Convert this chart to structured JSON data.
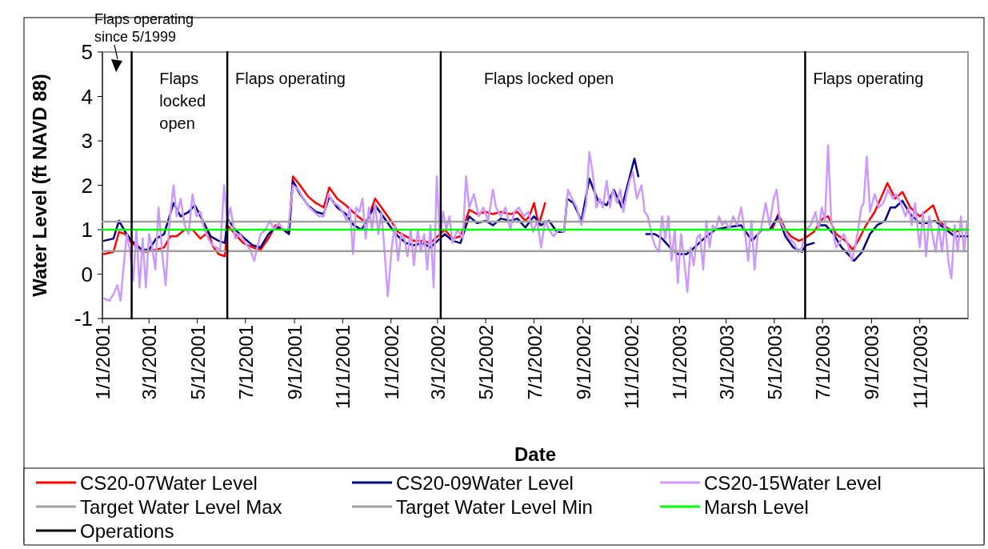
{
  "chart_data": {
    "type": "line",
    "xlabel": "Date",
    "ylabel": "Water Level (ft NAVD 88)",
    "xlim": [
      "2001-01-01",
      "2004-01-01"
    ],
    "ylim": [
      -1,
      5
    ],
    "yticks": [
      -1,
      0,
      1,
      2,
      3,
      4,
      5
    ],
    "xticks": [
      {
        "value": "2001-01-01",
        "label": "1/1/2001"
      },
      {
        "value": "2001-03-01",
        "label": "3/1/2001"
      },
      {
        "value": "2001-05-01",
        "label": "5/1/2001"
      },
      {
        "value": "2001-07-01",
        "label": "7/1/2001"
      },
      {
        "value": "2001-09-01",
        "label": "9/1/2001"
      },
      {
        "value": "2001-11-01",
        "label": "11/1/2001"
      },
      {
        "value": "2002-01-01",
        "label": "1/1/2002"
      },
      {
        "value": "2002-03-01",
        "label": "3/1/2002"
      },
      {
        "value": "2002-05-01",
        "label": "5/1/2002"
      },
      {
        "value": "2002-07-01",
        "label": "7/1/2002"
      },
      {
        "value": "2002-09-01",
        "label": "9/1/2002"
      },
      {
        "value": "2002-11-01",
        "label": "11/1/2002"
      },
      {
        "value": "2003-01-01",
        "label": "1/1/2003"
      },
      {
        "value": "2003-03-01",
        "label": "3/1/2003"
      },
      {
        "value": "2003-05-01",
        "label": "5/1/2003"
      },
      {
        "value": "2003-07-01",
        "label": "7/1/2003"
      },
      {
        "value": "2003-09-01",
        "label": "9/1/2003"
      },
      {
        "value": "2003-11-01",
        "label": "11/1/2003"
      }
    ],
    "legend": "bottom",
    "annotations": [
      "Flaps operating since 5/1999",
      "Flaps locked open",
      "Flaps operating",
      "Flaps locked open",
      "Flaps operating"
    ],
    "series": [
      {
        "name": "CS20-07Water Level",
        "color": "#ff0000",
        "x": [
          "2001-01-03",
          "2001-01-15",
          "2001-01-22",
          "2001-01-30",
          "2001-02-07",
          "2001-02-15",
          "2001-02-25",
          "2001-03-10",
          "2001-03-20",
          "2001-03-28",
          "2001-04-05",
          "2001-04-15",
          "2001-04-25",
          "2001-05-05",
          "2001-05-15",
          "2001-05-20",
          "2001-05-28",
          "2001-06-05",
          "2001-06-08",
          "2001-06-18",
          "2001-06-28",
          "2001-07-10",
          "2001-07-20",
          "2001-07-30",
          "2001-08-08",
          "2001-08-18",
          "2001-08-25",
          "2001-08-30",
          "2001-09-08",
          "2001-09-18",
          "2001-09-28",
          "2001-10-08",
          "2001-10-15",
          "2001-10-25",
          "2001-11-05",
          "2001-11-20",
          "2001-12-01",
          "2001-12-12",
          "2001-12-22",
          "2002-01-01",
          "2002-01-10",
          "2002-01-20",
          "2002-01-30",
          "2002-02-10",
          "2002-02-20",
          "2002-03-01",
          "2002-03-10",
          "2002-03-20",
          "2002-03-30",
          "2002-04-10",
          "2002-04-20",
          "2002-05-01",
          "2002-05-10",
          "2002-05-20",
          "2002-06-01",
          "2002-06-10",
          "2002-06-20",
          "2002-06-25",
          "2002-07-01",
          "2002-07-07",
          "2002-07-15",
          "2002-12-01",
          "2003-04-28",
          "2003-05-06",
          "2003-05-15",
          "2003-05-22",
          "2003-06-01",
          "2003-06-08",
          "2003-06-20",
          "2003-07-01",
          "2003-07-08",
          "2003-07-18",
          "2003-07-30",
          "2003-08-08",
          "2003-08-15",
          "2003-08-25",
          "2003-09-05",
          "2003-09-15",
          "2003-09-21",
          "2003-10-01",
          "2003-10-10",
          "2003-10-20",
          "2003-11-01",
          "2003-11-18",
          "2003-11-25",
          "2003-12-05",
          "2003-12-15",
          "2003-12-25",
          "2003-12-31"
        ],
        "values": [
          0.45,
          0.5,
          0.95,
          0.9,
          0.7,
          0.6,
          0.5,
          0.55,
          0.6,
          0.85,
          0.85,
          1.0,
          1.0,
          0.8,
          0.95,
          0.65,
          0.45,
          0.4,
          1.1,
          0.9,
          0.7,
          0.6,
          0.55,
          0.8,
          1.1,
          1.0,
          0.95,
          2.2,
          2.0,
          1.75,
          1.6,
          1.5,
          1.95,
          1.7,
          1.55,
          1.3,
          1.15,
          1.7,
          1.45,
          1.2,
          0.95,
          0.85,
          0.75,
          0.75,
          0.7,
          0.85,
          1.0,
          0.8,
          0.85,
          1.45,
          1.35,
          1.4,
          1.35,
          1.4,
          1.35,
          1.4,
          1.2,
          1.3,
          1.6,
          1.1,
          1.6,
          null,
          1.0,
          1.35,
          1.0,
          0.85,
          0.75,
          0.8,
          0.95,
          1.25,
          1.3,
          0.9,
          0.75,
          0.55,
          0.75,
          1.1,
          1.4,
          1.8,
          2.05,
          1.7,
          1.85,
          1.5,
          1.3,
          1.55,
          1.2,
          1.05,
          0.95,
          1.0,
          1.0
        ]
      },
      {
        "name": "CS20-09Water Level",
        "color": "#000080",
        "x": [
          "2001-01-03",
          "2001-01-15",
          "2001-01-22",
          "2001-01-30",
          "2001-02-07",
          "2001-02-20",
          "2001-03-01",
          "2001-03-10",
          "2001-03-20",
          "2001-04-01",
          "2001-04-10",
          "2001-04-20",
          "2001-04-28",
          "2001-05-08",
          "2001-05-18",
          "2001-05-28",
          "2001-06-05",
          "2001-06-08",
          "2001-06-18",
          "2001-06-30",
          "2001-07-10",
          "2001-07-20",
          "2001-07-30",
          "2001-08-08",
          "2001-08-18",
          "2001-08-25",
          "2001-08-30",
          "2001-09-08",
          "2001-09-18",
          "2001-09-28",
          "2001-10-08",
          "2001-10-15",
          "2001-10-25",
          "2001-11-05",
          "2001-11-15",
          "2001-11-25",
          "2001-12-12",
          "2001-12-22",
          "2002-01-01",
          "2002-01-10",
          "2002-01-20",
          "2002-01-30",
          "2002-02-10",
          "2002-02-20",
          "2002-03-01",
          "2002-03-10",
          "2002-03-20",
          "2002-03-30",
          "2002-04-10",
          "2002-04-20",
          "2002-05-01",
          "2002-05-10",
          "2002-05-20",
          "2002-06-01",
          "2002-06-10",
          "2002-06-20",
          "2002-07-01",
          "2002-07-10",
          "2002-07-20",
          "2002-07-30",
          "2002-08-08",
          "2002-08-12",
          "2002-08-20",
          "2002-08-30",
          "2002-09-09",
          "2002-09-20",
          "2002-10-01",
          "2002-10-10",
          "2002-10-20",
          "2002-10-28",
          "2002-11-05",
          "2002-11-10",
          "2002-11-15",
          "2002-11-20",
          "2002-12-01",
          "2002-12-10",
          "2002-12-20",
          "2002-12-30",
          "2003-01-10",
          "2003-01-20",
          "2003-02-01",
          "2003-02-15",
          "2003-03-01",
          "2003-03-20",
          "2003-04-03",
          "2003-04-15",
          "2003-04-25",
          "2003-05-06",
          "2003-05-15",
          "2003-05-25",
          "2003-06-05",
          "2003-06-10",
          "2003-06-20",
          "2003-06-22",
          "2003-06-25",
          "2003-07-05",
          "2003-07-15",
          "2003-07-25",
          "2003-08-05",
          "2003-08-10",
          "2003-08-20",
          "2003-08-30",
          "2003-09-08",
          "2003-09-18",
          "2003-09-25",
          "2003-10-01",
          "2003-10-10",
          "2003-10-20",
          "2003-11-01",
          "2003-11-10",
          "2003-11-20",
          "2003-12-01",
          "2003-12-15",
          "2003-12-31"
        ],
        "values": [
          0.75,
          0.8,
          1.2,
          0.95,
          0.75,
          0.55,
          0.55,
          0.8,
          0.9,
          1.6,
          1.3,
          1.4,
          1.55,
          1.2,
          0.85,
          0.75,
          0.7,
          1.25,
          1.0,
          0.8,
          0.65,
          0.6,
          0.9,
          1.05,
          1.0,
          0.9,
          2.1,
          1.8,
          1.55,
          1.4,
          1.35,
          1.75,
          1.5,
          1.35,
          1.1,
          1.0,
          1.55,
          1.3,
          1.05,
          0.85,
          0.7,
          0.65,
          0.7,
          0.6,
          0.75,
          0.9,
          0.75,
          0.7,
          1.3,
          1.15,
          1.2,
          1.1,
          1.25,
          1.2,
          1.25,
          1.05,
          1.3,
          1.1,
          1.2,
          0.95,
          0.95,
          1.7,
          1.6,
          1.2,
          2.15,
          1.65,
          1.55,
          1.9,
          1.5,
          2.05,
          2.6,
          2.2,
          null,
          0.9,
          0.9,
          0.8,
          0.6,
          0.45,
          0.45,
          0.6,
          0.8,
          1.0,
          1.05,
          1.1,
          0.75,
          1.0,
          1.0,
          1.3,
          0.85,
          0.6,
          0.5,
          0.65,
          0.7,
          null,
          1.1,
          1.1,
          0.9,
          0.6,
          0.4,
          0.3,
          0.5,
          0.9,
          1.1,
          1.2,
          1.5,
          1.5,
          1.65,
          1.35,
          1.15,
          1.15,
          1.2,
          1.05,
          0.85,
          0.85
        ]
      },
      {
        "name": "CS20-15Water Level",
        "color": "#cc99ff",
        "x": [
          "2001-01-03",
          "2001-01-10",
          "2001-01-15",
          "2001-01-20",
          "2001-01-24",
          "2001-01-28",
          "2001-02-01",
          "2001-02-05",
          "2001-02-09",
          "2001-02-13",
          "2001-02-17",
          "2001-02-21",
          "2001-02-25",
          "2001-03-01",
          "2001-03-05",
          "2001-03-09",
          "2001-03-13",
          "2001-03-18",
          "2001-03-22",
          "2001-03-27",
          "2001-04-01",
          "2001-04-05",
          "2001-04-10",
          "2001-04-15",
          "2001-04-20",
          "2001-04-25",
          "2001-04-30",
          "2001-05-05",
          "2001-05-10",
          "2001-05-15",
          "2001-05-20",
          "2001-05-25",
          "2001-05-30",
          "2001-06-04",
          "2001-06-08",
          "2001-06-12",
          "2001-06-18",
          "2001-06-24",
          "2001-07-01",
          "2001-07-07",
          "2001-07-12",
          "2001-07-20",
          "2001-07-26",
          "2001-08-01",
          "2001-08-06",
          "2001-08-12",
          "2001-08-18",
          "2001-08-24",
          "2001-08-30",
          "2001-09-06",
          "2001-09-12",
          "2001-09-20",
          "2001-09-26",
          "2001-10-02",
          "2001-10-08",
          "2001-10-14",
          "2001-10-20",
          "2001-10-26",
          "2001-11-01",
          "2001-11-06",
          "2001-11-10",
          "2001-11-14",
          "2001-11-18",
          "2001-11-22",
          "2001-11-26",
          "2001-11-30",
          "2001-12-04",
          "2001-12-08",
          "2001-12-12",
          "2001-12-16",
          "2001-12-20",
          "2001-12-24",
          "2001-12-28",
          "2002-01-02",
          "2002-01-06",
          "2002-01-10",
          "2002-01-14",
          "2002-01-18",
          "2002-01-22",
          "2002-01-26",
          "2002-01-30",
          "2002-02-04",
          "2002-02-08",
          "2002-02-12",
          "2002-02-16",
          "2002-02-20",
          "2002-02-24",
          "2002-02-28",
          "2002-03-04",
          "2002-03-08",
          "2002-03-12",
          "2002-03-16",
          "2002-03-20",
          "2002-03-26",
          "2002-04-02",
          "2002-04-06",
          "2002-04-10",
          "2002-04-16",
          "2002-04-22",
          "2002-04-28",
          "2002-05-04",
          "2002-05-10",
          "2002-05-14",
          "2002-05-20",
          "2002-05-26",
          "2002-06-01",
          "2002-06-06",
          "2002-06-12",
          "2002-06-18",
          "2002-06-24",
          "2002-06-30",
          "2002-07-05",
          "2002-07-10",
          "2002-07-15",
          "2002-07-20",
          "2002-07-26",
          "2002-08-01",
          "2002-08-08",
          "2002-08-13",
          "2002-08-18",
          "2002-08-24",
          "2002-08-30",
          "2002-09-05",
          "2002-09-09",
          "2002-09-13",
          "2002-09-18",
          "2002-09-22",
          "2002-09-26",
          "2002-10-01",
          "2002-10-05",
          "2002-10-09",
          "2002-10-14",
          "2002-10-18",
          "2002-10-22",
          "2002-10-26",
          "2002-10-30",
          "2002-11-03",
          "2002-11-08",
          "2002-11-14",
          "2002-11-18",
          "2002-11-22",
          "2002-11-28",
          "2002-12-02",
          "2002-12-06",
          "2002-12-10",
          "2002-12-14",
          "2002-12-18",
          "2002-12-22",
          "2002-12-26",
          "2002-12-30",
          "2003-01-03",
          "2003-01-07",
          "2003-01-11",
          "2003-01-15",
          "2003-01-19",
          "2003-01-23",
          "2003-01-27",
          "2003-01-31",
          "2003-02-04",
          "2003-02-08",
          "2003-02-12",
          "2003-02-16",
          "2003-02-20",
          "2003-02-24",
          "2003-02-28",
          "2003-03-05",
          "2003-03-10",
          "2003-03-15",
          "2003-03-20",
          "2003-03-25",
          "2003-03-29",
          "2003-04-02",
          "2003-04-06",
          "2003-04-10",
          "2003-04-14",
          "2003-04-20",
          "2003-04-25",
          "2003-04-30",
          "2003-05-04",
          "2003-05-08",
          "2003-05-14",
          "2003-05-20",
          "2003-05-26",
          "2003-05-31",
          "2003-06-05",
          "2003-06-10",
          "2003-06-16",
          "2003-06-22",
          "2003-06-26",
          "2003-06-30",
          "2003-07-04",
          "2003-07-08",
          "2003-07-12",
          "2003-07-18",
          "2003-07-22",
          "2003-07-28",
          "2003-08-03",
          "2003-08-07",
          "2003-08-11",
          "2003-08-15",
          "2003-08-19",
          "2003-08-22",
          "2003-08-26",
          "2003-08-30",
          "2003-09-05",
          "2003-09-10",
          "2003-09-16",
          "2003-09-22",
          "2003-09-28",
          "2003-10-02",
          "2003-10-08",
          "2003-10-14",
          "2003-10-18",
          "2003-10-22",
          "2003-10-26",
          "2003-11-01",
          "2003-11-05",
          "2003-11-09",
          "2003-11-13",
          "2003-11-17",
          "2003-11-21",
          "2003-11-25",
          "2003-11-29",
          "2003-12-03",
          "2003-12-07",
          "2003-12-11",
          "2003-12-15",
          "2003-12-19",
          "2003-12-23",
          "2003-12-27",
          "2003-12-31"
        ],
        "values": [
          -0.55,
          -0.6,
          -0.45,
          -0.25,
          -0.6,
          0.2,
          0.9,
          0.5,
          -0.15,
          1.0,
          -0.3,
          0.8,
          -0.3,
          0.9,
          0.6,
          0.1,
          1.5,
          0.4,
          -0.25,
          1.2,
          2.0,
          1.3,
          1.7,
          1.1,
          0.9,
          1.8,
          1.3,
          1.4,
          1.0,
          0.8,
          0.65,
          0.6,
          0.55,
          2.0,
          1.2,
          1.5,
          0.8,
          0.9,
          0.7,
          0.55,
          0.3,
          0.9,
          1.0,
          1.2,
          1.0,
          1.15,
          1.0,
          1.0,
          2.0,
          1.9,
          1.7,
          1.5,
          1.4,
          1.3,
          1.3,
          1.8,
          1.6,
          1.55,
          1.4,
          1.2,
          1.5,
          0.45,
          1.5,
          1.4,
          1.7,
          0.8,
          1.5,
          1.0,
          1.6,
          0.9,
          1.4,
          0.5,
          -0.5,
          0.6,
          1.1,
          0.3,
          0.9,
          0.8,
          0.4,
          1.0,
          0.2,
          1.0,
          0.5,
          0.9,
          0.1,
          1.1,
          -0.3,
          2.2,
          0.8,
          1.4,
          1.0,
          1.3,
          0.7,
          1.0,
          0.8,
          2.2,
          1.5,
          1.8,
          1.3,
          1.5,
          1.2,
          1.9,
          1.5,
          1.3,
          1.5,
          1.0,
          1.4,
          1.5,
          1.3,
          1.4,
          0.95,
          1.2,
          0.6,
          1.2,
          1.0,
          0.85,
          1.0,
          0.95,
          1.9,
          1.7,
          1.5,
          1.1,
          1.6,
          2.75,
          2.3,
          1.5,
          1.7,
          1.5,
          2.1,
          1.5,
          1.9,
          1.6,
          1.9,
          1.4,
          1.8,
          2.1,
          2.3,
          1.7,
          2.0,
          1.4,
          1.3,
          0.8,
          0.6,
          0.5,
          1.3,
          0.8,
          1.3,
          0.3,
          1.0,
          -0.2,
          0.9,
          0.3,
          -0.4,
          0.6,
          0.2,
          0.8,
          0.9,
          0.1,
          1.2,
          0.6,
          1.1,
          1.0,
          1.3,
          1.1,
          1.2,
          1.0,
          1.3,
          1.1,
          1.5,
          0.9,
          0.3,
          1.2,
          0.1,
          0.9,
          1.0,
          1.6,
          1.1,
          1.7,
          1.9,
          1.2,
          1.0,
          0.8,
          0.7,
          0.5,
          0.6,
          1.0,
          1.1,
          1.4,
          1.0,
          1.5,
          1.2,
          2.9,
          1.2,
          0.6,
          0.7,
          0.9,
          0.6,
          0.3,
          0.6,
          1.0,
          1.5,
          1.6,
          2.65,
          1.4,
          1.8,
          1.5,
          1.6,
          1.9,
          1.7,
          1.8,
          1.6,
          1.3,
          1.5,
          1.1,
          1.6,
          0.6,
          1.4,
          0.4,
          1.3,
          0.9,
          0.5,
          1.1,
          0.5,
          1.2,
          0.3,
          -0.1,
          1.1,
          0.5,
          1.3,
          0.5,
          1.2
        ]
      },
      {
        "name": "Target Water Level Max",
        "color": "#a0a0a0",
        "x": [
          "2001-01-01",
          "2004-01-01"
        ],
        "values": [
          1.18,
          1.18
        ]
      },
      {
        "name": "Target Water Level Min",
        "color": "#a0a0a0",
        "x": [
          "2001-01-01",
          "2004-01-01"
        ],
        "values": [
          0.52,
          0.52
        ]
      },
      {
        "name": "Marsh Level",
        "color": "#00ff00",
        "x": [
          "2001-01-01",
          "2004-01-01"
        ],
        "values": [
          1.0,
          1.0
        ]
      },
      {
        "name": "Operations",
        "color": "#000000",
        "x": [
          "2001-02-07",
          "2001-02-07"
        ],
        "values": [
          -1,
          5
        ]
      },
      {
        "color": "#000000",
        "x": [
          "2001-06-08",
          "2001-06-08"
        ],
        "values": [
          -1,
          5
        ]
      },
      {
        "color": "#000000",
        "x": [
          "2002-03-05",
          "2002-03-05"
        ],
        "values": [
          -1,
          5
        ]
      },
      {
        "color": "#000000",
        "x": [
          "2003-06-09",
          "2003-06-09"
        ],
        "values": [
          -1,
          5
        ]
      }
    ]
  }
}
